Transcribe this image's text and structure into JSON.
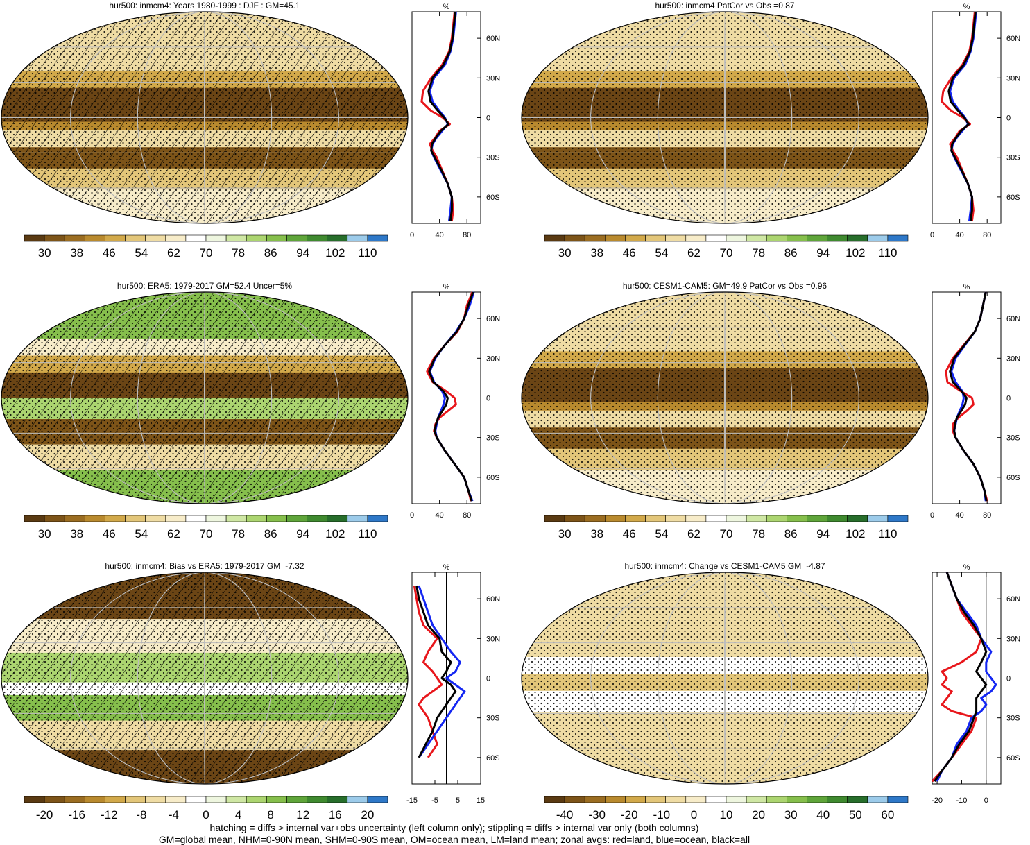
{
  "palettes": {
    "abs": [
      "#5a3a12",
      "#7d5418",
      "#9b6d21",
      "#b98a2e",
      "#d2a94a",
      "#e3c679",
      "#efdca4",
      "#f7ecc9",
      "#ffffff",
      "#eef6df",
      "#cfe7a4",
      "#acd570",
      "#86bf4c",
      "#5fa53a",
      "#3f8a2f",
      "#276e2b",
      "#9ccbea",
      "#2e78c8"
    ],
    "bias": [
      "#5a3a12",
      "#7d5418",
      "#9b6d21",
      "#b98a2e",
      "#d2a94a",
      "#e3c679",
      "#efdca4",
      "#f7ecc9",
      "#ffffff",
      "#eef6df",
      "#cfe7a4",
      "#acd570",
      "#86bf4c",
      "#5fa53a",
      "#3f8a2f",
      "#276e2b",
      "#9ccbea",
      "#2e78c8"
    ]
  },
  "colorbar_ticks": {
    "abs": [
      "30",
      "38",
      "46",
      "54",
      "62",
      "70",
      "78",
      "86",
      "94",
      "102",
      "110"
    ],
    "bias": [
      "-20",
      "-16",
      "-12",
      "-8",
      "-4",
      "0",
      "4",
      "8",
      "12",
      "16",
      "20"
    ],
    "change": [
      "-40",
      "-30",
      "-20",
      "-10",
      "0",
      "10",
      "20",
      "30",
      "40",
      "50",
      "60"
    ]
  },
  "lat_labels": [
    "60N",
    "30N",
    "0",
    "30S",
    "60S"
  ],
  "profile_unit": "%",
  "footer": [
    "hatching = diffs > internal var+obs uncertainty (left column only); stippling = diffs > internal var only (both columns)",
    "GM=global mean, NHM=0-90N mean, SHM=0-90S mean, OM=ocean mean, LM=land mean; zonal avgs: red=land, blue=ocean, black=all"
  ],
  "chart_data": [
    {
      "type": "heatmap",
      "panel": "top-left",
      "title": "hur500: inmcm4: Years 1980-1999 : DJF : GM=45.1",
      "colorbar": "abs",
      "hatched": true,
      "profile": {
        "xticks": [
          "0",
          "40",
          "80"
        ],
        "xlim": [
          0,
          100
        ],
        "zero_line": false,
        "lat": [
          80,
          70,
          60,
          50,
          40,
          30,
          20,
          12,
          5,
          0,
          -5,
          -10,
          -15,
          -20,
          -25,
          -30,
          -40,
          -50,
          -60,
          -70,
          -78
        ],
        "land": [
          62,
          60,
          58,
          54,
          44,
          28,
          16,
          14,
          28,
          45,
          55,
          40,
          34,
          26,
          30,
          36,
          44,
          52,
          58,
          60,
          58
        ],
        "ocean": [
          64,
          62,
          60,
          56,
          48,
          32,
          26,
          30,
          40,
          48,
          52,
          44,
          36,
          30,
          28,
          32,
          42,
          52,
          58,
          56,
          54
        ],
        "all": [
          63,
          61,
          59,
          55,
          46,
          30,
          24,
          27,
          38,
          47,
          53,
          42,
          35,
          29,
          28,
          33,
          43,
          52,
          58,
          58,
          56
        ]
      }
    },
    {
      "type": "heatmap",
      "panel": "top-right",
      "title": "hur500: inmcm4 PatCor vs Obs =0.87",
      "colorbar": "abs",
      "hatched": false,
      "profile": {
        "xticks": [
          "0",
          "40",
          "80"
        ],
        "xlim": [
          0,
          100
        ],
        "zero_line": false,
        "lat": [
          80,
          70,
          60,
          50,
          40,
          30,
          20,
          12,
          5,
          0,
          -5,
          -10,
          -15,
          -20,
          -25,
          -30,
          -40,
          -50,
          -60,
          -70,
          -78
        ],
        "land": [
          62,
          60,
          58,
          54,
          44,
          28,
          16,
          14,
          28,
          45,
          55,
          40,
          34,
          26,
          30,
          36,
          44,
          52,
          58,
          60,
          58
        ],
        "ocean": [
          64,
          62,
          60,
          56,
          48,
          32,
          26,
          30,
          40,
          48,
          52,
          44,
          36,
          30,
          28,
          32,
          42,
          52,
          58,
          56,
          54
        ],
        "all": [
          63,
          61,
          59,
          55,
          46,
          30,
          24,
          27,
          38,
          47,
          53,
          42,
          35,
          29,
          28,
          33,
          43,
          52,
          58,
          58,
          56
        ]
      }
    },
    {
      "type": "heatmap",
      "panel": "middle-left",
      "title": "hur500: ERA5: 1979-2017 GM=52.4 Uncer=5%",
      "colorbar": "abs",
      "hatched": true,
      "profile": {
        "xticks": [
          "0",
          "40",
          "80"
        ],
        "xlim": [
          0,
          100
        ],
        "zero_line": false,
        "lat": [
          80,
          70,
          60,
          50,
          40,
          30,
          20,
          12,
          5,
          0,
          -5,
          -10,
          -15,
          -20,
          -25,
          -30,
          -40,
          -50,
          -60,
          -70,
          -78
        ],
        "land": [
          88,
          80,
          76,
          66,
          48,
          32,
          22,
          30,
          50,
          62,
          64,
          52,
          40,
          34,
          32,
          36,
          48,
          62,
          76,
          82,
          86
        ],
        "ocean": [
          90,
          84,
          76,
          64,
          48,
          34,
          26,
          32,
          44,
          48,
          46,
          42,
          38,
          36,
          34,
          36,
          48,
          62,
          76,
          82,
          88
        ],
        "all": [
          89,
          82,
          76,
          65,
          48,
          33,
          25,
          31,
          46,
          52,
          50,
          44,
          38,
          35,
          33,
          36,
          48,
          62,
          76,
          82,
          87
        ]
      }
    },
    {
      "type": "heatmap",
      "panel": "middle-right",
      "title": "hur500: CESM1-CAM5: GM=49.9 PatCor vs Obs =0.96",
      "colorbar": "abs",
      "hatched": false,
      "profile": {
        "xticks": [
          "0",
          "40",
          "80"
        ],
        "xlim": [
          0,
          100
        ],
        "zero_line": false,
        "lat": [
          80,
          70,
          60,
          50,
          40,
          30,
          20,
          12,
          5,
          0,
          -5,
          -10,
          -15,
          -20,
          -25,
          -30,
          -40,
          -50,
          -60,
          -70,
          -78
        ],
        "land": [
          78,
          74,
          70,
          62,
          46,
          30,
          20,
          22,
          42,
          58,
          60,
          50,
          38,
          30,
          30,
          34,
          46,
          60,
          70,
          76,
          80
        ],
        "ocean": [
          78,
          74,
          70,
          62,
          48,
          34,
          28,
          34,
          44,
          46,
          44,
          40,
          36,
          34,
          32,
          34,
          46,
          60,
          70,
          76,
          78
        ],
        "all": [
          78,
          74,
          70,
          62,
          47,
          32,
          26,
          30,
          43,
          50,
          48,
          42,
          36,
          33,
          32,
          34,
          46,
          60,
          70,
          76,
          79
        ]
      }
    },
    {
      "type": "heatmap",
      "panel": "bottom-left",
      "title": "hur500: inmcm4: Bias vs ERA5: 1979-2017 GM=-7.32",
      "colorbar": "bias",
      "hatched": true,
      "profile": {
        "xticks": [
          "-15",
          "-5",
          "5",
          "15"
        ],
        "xlim": [
          -15,
          15
        ],
        "zero_line": true,
        "lat": [
          70,
          60,
          50,
          40,
          30,
          20,
          12,
          5,
          0,
          -5,
          -10,
          -15,
          -20,
          -25,
          -30,
          -40,
          -50,
          -60
        ],
        "land": [
          -14,
          -13,
          -12,
          -10,
          -4,
          -8,
          -10,
          -6,
          -4,
          -2,
          -6,
          -10,
          -12,
          -10,
          -8,
          -6,
          -4,
          -8
        ],
        "ocean": [
          -12,
          -10,
          -8,
          -6,
          -2,
          2,
          6,
          4,
          0,
          4,
          8,
          6,
          4,
          2,
          0,
          -4,
          -8,
          -12
        ],
        "all": [
          -13,
          -12,
          -10,
          -8,
          -3,
          -2,
          2,
          0,
          -2,
          2,
          4,
          2,
          0,
          -2,
          -4,
          -6,
          -9,
          -12
        ]
      }
    },
    {
      "type": "heatmap",
      "panel": "bottom-right",
      "title": "hur500: inmcm4: Change vs CESM1-CAM5 GM=-4.87",
      "colorbar": "change",
      "hatched": false,
      "profile": {
        "xticks": [
          "-20",
          "-10",
          "0"
        ],
        "xlim": [
          -22,
          6
        ],
        "zero_line": true,
        "lat": [
          80,
          70,
          60,
          50,
          40,
          30,
          20,
          12,
          5,
          0,
          -5,
          -10,
          -15,
          -20,
          -25,
          -30,
          -40,
          -50,
          -60,
          -70,
          -78
        ],
        "land": [
          -16,
          -14,
          -12,
          -10,
          -6,
          -2,
          -4,
          -10,
          -18,
          -16,
          -18,
          -14,
          -16,
          -18,
          -14,
          -4,
          -6,
          -10,
          -14,
          -18,
          -22
        ],
        "ocean": [
          -16,
          -14,
          -12,
          -8,
          -4,
          -2,
          2,
          0,
          0,
          2,
          4,
          2,
          -2,
          0,
          -2,
          -6,
          -8,
          -12,
          -14,
          -18,
          -20
        ],
        "all": [
          -16,
          -14,
          -12,
          -9,
          -5,
          -2,
          0,
          -2,
          -4,
          -2,
          0,
          -2,
          -4,
          -4,
          -4,
          -5,
          -7,
          -11,
          -14,
          -18,
          -21
        ]
      }
    }
  ]
}
